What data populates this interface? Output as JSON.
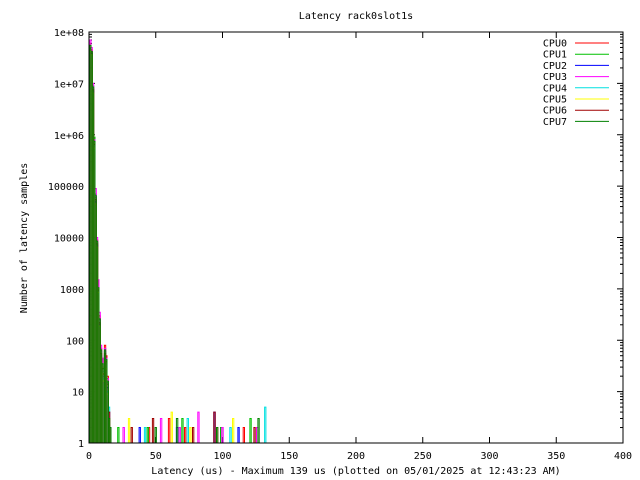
{
  "chart_data": {
    "type": "line",
    "title": "Latency rack0slot1s",
    "xlabel": "Latency (us) - Maximum 139 us (plotted on 05/01/2025 at 12:43:23 AM)",
    "ylabel": "Number of latency samples",
    "xlim": [
      0,
      400
    ],
    "ylim": [
      1,
      100000000
    ],
    "yscale": "log",
    "x_ticks": [
      0,
      50,
      100,
      150,
      200,
      250,
      300,
      350,
      400
    ],
    "x_tick_labels": [
      "0",
      "50",
      "100",
      "150",
      "200",
      "250",
      "300",
      "350",
      "400"
    ],
    "y_ticks": [
      1,
      10,
      100,
      1000,
      10000,
      100000,
      1000000,
      10000000,
      100000000
    ],
    "y_tick_labels": [
      "1",
      "10",
      "100",
      "1000",
      "10000",
      "100000",
      "1e+06",
      "1e+07",
      "1e+08"
    ],
    "grid": false,
    "legend_position": "top-right",
    "series": [
      {
        "name": "CPU0",
        "color": "#ff0000",
        "x": [
          1,
          2,
          3,
          4,
          5,
          6,
          7,
          8,
          9,
          10,
          11,
          12,
          13,
          14,
          15,
          16,
          17,
          18,
          20,
          25,
          33,
          45,
          60,
          72,
          88,
          96,
          104,
          116,
          128
        ],
        "y": [
          60000000,
          45000000,
          8000000,
          700000,
          60000,
          9000,
          1200,
          300,
          70,
          40,
          30,
          80,
          50,
          20,
          4,
          2,
          1,
          1,
          1,
          1,
          1,
          2,
          3,
          2,
          1,
          2,
          1,
          2,
          1
        ]
      },
      {
        "name": "CPU1",
        "color": "#00c000",
        "x": [
          1,
          2,
          3,
          4,
          5,
          6,
          7,
          8,
          9,
          10,
          11,
          12,
          13,
          14,
          15,
          16,
          17,
          18,
          22,
          30,
          44,
          58,
          70,
          84,
          99,
          110,
          121,
          130
        ],
        "y": [
          50000000,
          40000000,
          9000000,
          900000,
          70000,
          8000,
          1100,
          250,
          60,
          30,
          25,
          60,
          40,
          15,
          3,
          2,
          1,
          1,
          2,
          1,
          2,
          1,
          3,
          1,
          2,
          1,
          3,
          1
        ]
      },
      {
        "name": "CPU2",
        "color": "#0000ff",
        "x": [
          1,
          2,
          3,
          4,
          5,
          6,
          7,
          8,
          9,
          10,
          11,
          12,
          13,
          14,
          15,
          16,
          17,
          18,
          24,
          38,
          52,
          66,
          80,
          94,
          112,
          125,
          139
        ],
        "y": [
          45000000,
          38000000,
          7000000,
          600000,
          50000,
          7000,
          900,
          200,
          50,
          25,
          20,
          50,
          35,
          12,
          3,
          1,
          1,
          1,
          1,
          2,
          1,
          2,
          1,
          4,
          2,
          1,
          1
        ]
      },
      {
        "name": "CPU3",
        "color": "#ff00ff",
        "x": [
          1,
          2,
          3,
          4,
          5,
          6,
          7,
          8,
          9,
          10,
          11,
          12,
          13,
          14,
          15,
          16,
          17,
          18,
          26,
          40,
          54,
          68,
          82,
          100,
          114,
          126
        ],
        "y": [
          70000000,
          50000000,
          10000000,
          800000,
          90000,
          10000,
          1500,
          350,
          80,
          45,
          15,
          70,
          45,
          18,
          4,
          2,
          1,
          1,
          2,
          1,
          3,
          2,
          4,
          2,
          1,
          2
        ]
      },
      {
        "name": "CPU4",
        "color": "#00e0e0",
        "x": [
          1,
          2,
          3,
          4,
          5,
          6,
          7,
          8,
          9,
          10,
          11,
          12,
          13,
          14,
          15,
          16,
          17,
          18,
          28,
          42,
          56,
          74,
          90,
          106,
          118,
          132
        ],
        "y": [
          40000000,
          35000000,
          6000000,
          500000,
          40000,
          6000,
          800,
          180,
          40,
          20,
          18,
          45,
          30,
          10,
          5,
          1,
          1,
          1,
          1,
          2,
          1,
          3,
          1,
          2,
          1,
          5
        ]
      },
      {
        "name": "CPU5",
        "color": "#ffff00",
        "x": [
          1,
          2,
          3,
          4,
          5,
          6,
          7,
          8,
          9,
          10,
          11,
          12,
          13,
          14,
          15,
          16,
          17,
          18,
          30,
          46,
          62,
          76,
          92,
          108,
          122
        ],
        "y": [
          42000000,
          36000000,
          6500000,
          550000,
          45000,
          6500,
          850,
          190,
          45,
          22,
          16,
          40,
          28,
          9,
          3,
          1,
          1,
          1,
          3,
          1,
          4,
          2,
          1,
          3,
          1
        ]
      },
      {
        "name": "CPU6",
        "color": "#a00000",
        "x": [
          1,
          2,
          3,
          4,
          5,
          6,
          7,
          8,
          9,
          10,
          11,
          12,
          13,
          14,
          15,
          16,
          17,
          18,
          32,
          48,
          64,
          78,
          94,
          110,
          124
        ],
        "y": [
          48000000,
          39000000,
          7500000,
          650000,
          55000,
          7500,
          950,
          220,
          55,
          28,
          22,
          55,
          38,
          14,
          4,
          2,
          1,
          1,
          2,
          3,
          1,
          2,
          4,
          1,
          2
        ]
      },
      {
        "name": "CPU7",
        "color": "#008000",
        "x": [
          1,
          2,
          3,
          4,
          5,
          6,
          7,
          8,
          9,
          10,
          11,
          12,
          13,
          14,
          15,
          16,
          17,
          18,
          34,
          50,
          66,
          80,
          96,
          112,
          127
        ],
        "y": [
          55000000,
          42000000,
          8500000,
          750000,
          65000,
          8500,
          1050,
          260,
          65,
          35,
          28,
          65,
          42,
          16,
          3,
          2,
          1,
          1,
          1,
          2,
          3,
          1,
          2,
          1,
          3
        ]
      }
    ]
  }
}
